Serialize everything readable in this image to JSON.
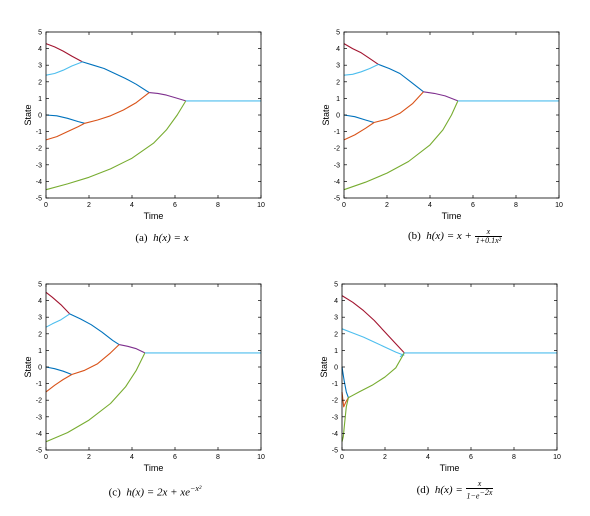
{
  "colors": {
    "series1": "#0072bd",
    "series2": "#d95319",
    "series3": "#7e2f8e",
    "series4": "#77ac30",
    "series5": "#4dbeee",
    "series6": "#a2142f",
    "axis": "#000000",
    "background": "#ffffff"
  },
  "chart_data": [
    {
      "type": "line",
      "caption": {
        "label": "(a)",
        "text": "h(x) = x"
      },
      "xlabel": "Time",
      "ylabel": "State",
      "xlim": [
        0,
        10
      ],
      "ylim": [
        -5,
        5
      ],
      "xticks": [
        "0",
        "2",
        "4",
        "6",
        "8",
        "10"
      ],
      "yticks": [
        "-5",
        "-4",
        "-3",
        "-2",
        "-1",
        "0",
        "1",
        "2",
        "3",
        "4",
        "5"
      ],
      "grid": false,
      "series": [
        {
          "color": "#a2142f",
          "x": [
            0,
            0.4,
            0.8,
            1.2,
            1.7
          ],
          "y": [
            4.3,
            4.1,
            3.85,
            3.55,
            3.2
          ]
        },
        {
          "color": "#4dbeee",
          "x": [
            0,
            0.4,
            0.8,
            1.2,
            1.7
          ],
          "y": [
            2.4,
            2.5,
            2.7,
            2.95,
            3.2
          ]
        },
        {
          "color": "#0072bd",
          "x": [
            1.7,
            2.2,
            2.7,
            3.2,
            3.7,
            4.2,
            4.8
          ],
          "y": [
            3.2,
            3.0,
            2.8,
            2.5,
            2.2,
            1.85,
            1.35
          ]
        },
        {
          "color": "#7e2f8e",
          "x": [
            4.8,
            5.2,
            5.6,
            6.0,
            6.5
          ],
          "y": [
            1.35,
            1.3,
            1.2,
            1.05,
            0.85
          ]
        },
        {
          "color": "#0072bd",
          "x": [
            0,
            0.5,
            1.0,
            1.5,
            1.8
          ],
          "y": [
            0.0,
            -0.05,
            -0.2,
            -0.4,
            -0.5
          ]
        },
        {
          "color": "#d95319",
          "x": [
            0,
            0.5,
            1.0,
            1.5,
            1.8
          ],
          "y": [
            -1.5,
            -1.3,
            -1.0,
            -0.7,
            -0.5
          ]
        },
        {
          "color": "#d95319",
          "x": [
            1.8,
            2.4,
            3.0,
            3.6,
            4.2,
            4.8
          ],
          "y": [
            -0.5,
            -0.3,
            -0.05,
            0.3,
            0.75,
            1.35
          ]
        },
        {
          "color": "#77ac30",
          "x": [
            0,
            1,
            2,
            3,
            4,
            5,
            5.6,
            6.1,
            6.5
          ],
          "y": [
            -4.5,
            -4.15,
            -3.75,
            -3.25,
            -2.6,
            -1.7,
            -0.9,
            0.0,
            0.85
          ]
        },
        {
          "color": "#4dbeee",
          "x": [
            6.5,
            10
          ],
          "y": [
            0.85,
            0.85
          ]
        }
      ]
    },
    {
      "type": "line",
      "caption": {
        "label": "(b)",
        "text": "h(x) = x +",
        "frac_num": "x",
        "frac_den": "1+0.1x²"
      },
      "xlabel": "Time",
      "ylabel": "State",
      "xlim": [
        0,
        10
      ],
      "ylim": [
        -5,
        5
      ],
      "xticks": [
        "0",
        "2",
        "4",
        "6",
        "8",
        "10"
      ],
      "yticks": [
        "-5",
        "-4",
        "-3",
        "-2",
        "-1",
        "0",
        "1",
        "2",
        "3",
        "4",
        "5"
      ],
      "grid": false,
      "series": [
        {
          "color": "#a2142f",
          "x": [
            0,
            0.4,
            0.8,
            1.2,
            1.6
          ],
          "y": [
            4.3,
            4.0,
            3.75,
            3.4,
            3.05
          ]
        },
        {
          "color": "#4dbeee",
          "x": [
            0,
            0.4,
            0.8,
            1.2,
            1.6
          ],
          "y": [
            2.4,
            2.45,
            2.6,
            2.8,
            3.05
          ]
        },
        {
          "color": "#0072bd",
          "x": [
            1.6,
            2.1,
            2.6,
            3.1,
            3.7
          ],
          "y": [
            3.05,
            2.8,
            2.5,
            2.0,
            1.4
          ]
        },
        {
          "color": "#7e2f8e",
          "x": [
            3.7,
            4.2,
            4.7,
            5.3
          ],
          "y": [
            1.4,
            1.3,
            1.15,
            0.85
          ]
        },
        {
          "color": "#0072bd",
          "x": [
            0,
            0.5,
            1.0,
            1.4
          ],
          "y": [
            0.0,
            -0.1,
            -0.3,
            -0.45
          ]
        },
        {
          "color": "#d95319",
          "x": [
            0,
            0.5,
            1.0,
            1.4
          ],
          "y": [
            -1.5,
            -1.2,
            -0.8,
            -0.45
          ]
        },
        {
          "color": "#d95319",
          "x": [
            1.4,
            2.0,
            2.6,
            3.2,
            3.7
          ],
          "y": [
            -0.45,
            -0.25,
            0.1,
            0.7,
            1.4
          ]
        },
        {
          "color": "#77ac30",
          "x": [
            0,
            1,
            2,
            3,
            4,
            4.6,
            5.0,
            5.3
          ],
          "y": [
            -4.5,
            -4.05,
            -3.5,
            -2.8,
            -1.8,
            -0.9,
            0.0,
            0.85
          ]
        },
        {
          "color": "#4dbeee",
          "x": [
            5.3,
            10
          ],
          "y": [
            0.85,
            0.85
          ]
        }
      ]
    },
    {
      "type": "line",
      "caption": {
        "label": "(c)",
        "text": "h(x) = 2x + xe",
        "sup": "−x²"
      },
      "xlabel": "Time",
      "ylabel": "State",
      "xlim": [
        0,
        10
      ],
      "ylim": [
        -5,
        5
      ],
      "xticks": [
        "0",
        "2",
        "4",
        "6",
        "8",
        "10"
      ],
      "yticks": [
        "-5",
        "-4",
        "-3",
        "-2",
        "-1",
        "0",
        "1",
        "2",
        "3",
        "4",
        "5"
      ],
      "grid": false,
      "series": [
        {
          "color": "#a2142f",
          "x": [
            0,
            0.3,
            0.7,
            1.1
          ],
          "y": [
            4.5,
            4.2,
            3.75,
            3.2
          ]
        },
        {
          "color": "#4dbeee",
          "x": [
            0,
            0.3,
            0.7,
            1.1
          ],
          "y": [
            2.4,
            2.6,
            2.85,
            3.2
          ]
        },
        {
          "color": "#0072bd",
          "x": [
            1.1,
            1.6,
            2.1,
            2.6,
            3.1,
            3.4
          ],
          "y": [
            3.2,
            2.9,
            2.55,
            2.1,
            1.6,
            1.35
          ]
        },
        {
          "color": "#7e2f8e",
          "x": [
            3.4,
            3.8,
            4.2,
            4.6
          ],
          "y": [
            1.35,
            1.25,
            1.1,
            0.85
          ]
        },
        {
          "color": "#0072bd",
          "x": [
            0,
            0.4,
            0.8,
            1.2
          ],
          "y": [
            0.0,
            -0.1,
            -0.25,
            -0.45
          ]
        },
        {
          "color": "#d95319",
          "x": [
            0,
            0.4,
            0.8,
            1.2
          ],
          "y": [
            -1.5,
            -1.1,
            -0.75,
            -0.45
          ]
        },
        {
          "color": "#d95319",
          "x": [
            1.2,
            1.8,
            2.4,
            3.0,
            3.4
          ],
          "y": [
            -0.45,
            -0.2,
            0.2,
            0.85,
            1.35
          ]
        },
        {
          "color": "#77ac30",
          "x": [
            0,
            1,
            2,
            3,
            3.7,
            4.2,
            4.6
          ],
          "y": [
            -4.5,
            -3.95,
            -3.2,
            -2.2,
            -1.2,
            -0.2,
            0.85
          ]
        },
        {
          "color": "#4dbeee",
          "x": [
            4.6,
            10
          ],
          "y": [
            0.85,
            0.85
          ]
        }
      ]
    },
    {
      "type": "line",
      "caption": {
        "label": "(d)",
        "text": "h(x) =",
        "frac_num": "x",
        "frac_den": "1−e",
        "frac_den_sup": "−2x"
      },
      "xlabel": "Time",
      "ylabel": "State",
      "xlim": [
        0,
        10
      ],
      "ylim": [
        -5,
        5
      ],
      "xticks": [
        "0",
        "2",
        "4",
        "6",
        "8",
        "10"
      ],
      "yticks": [
        "-5",
        "-4",
        "-3",
        "-2",
        "-1",
        "0",
        "1",
        "2",
        "3",
        "4",
        "5"
      ],
      "grid": false,
      "series": [
        {
          "color": "#a2142f",
          "x": [
            0,
            0.5,
            1.0,
            1.5,
            2.0,
            2.5,
            2.9
          ],
          "y": [
            4.3,
            3.9,
            3.4,
            2.8,
            2.1,
            1.4,
            0.85
          ]
        },
        {
          "color": "#4dbeee",
          "x": [
            0,
            0.5,
            1.0,
            1.5,
            2.0,
            2.5,
            2.9
          ],
          "y": [
            2.3,
            2.05,
            1.8,
            1.5,
            1.2,
            0.9,
            0.7
          ]
        },
        {
          "color": "#4dbeee",
          "x": [
            2.7,
            2.9
          ],
          "y": [
            0.6,
            0.85
          ]
        },
        {
          "color": "#0072bd",
          "x": [
            0,
            0.1,
            0.2,
            0.3
          ],
          "y": [
            0.0,
            -0.8,
            -1.5,
            -1.85
          ]
        },
        {
          "color": "#d95319",
          "x": [
            0,
            0.08,
            0.18,
            0.3
          ],
          "y": [
            -1.5,
            -2.4,
            -2.1,
            -1.85
          ]
        },
        {
          "color": "#77ac30",
          "x": [
            0,
            0.06,
            0.12,
            0.2,
            0.3
          ],
          "y": [
            -4.5,
            -4.2,
            -3.4,
            -2.4,
            -1.85
          ]
        },
        {
          "color": "#77ac30",
          "x": [
            0.3,
            0.8,
            1.4,
            2.0,
            2.5,
            2.9
          ],
          "y": [
            -1.85,
            -1.5,
            -1.1,
            -0.6,
            -0.05,
            0.85
          ]
        },
        {
          "color": "#4dbeee",
          "x": [
            2.9,
            10
          ],
          "y": [
            0.85,
            0.85
          ]
        }
      ]
    }
  ]
}
